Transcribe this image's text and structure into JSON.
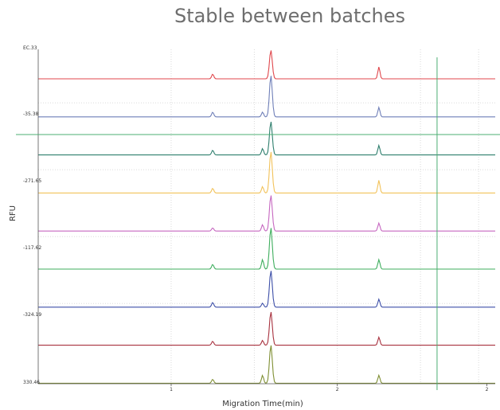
{
  "chart_data": {
    "type": "line",
    "title": "Stable between batches",
    "xlabel": "Migration Time(min)",
    "ylabel": "RFU",
    "x_ticks": [
      "1",
      "2",
      "2"
    ],
    "y_tick_labels": [
      "EC.33",
      "-35.38",
      "-271.65",
      "-117.62",
      "-324.19",
      "330.46"
    ],
    "grid": true,
    "cursor_lines": true,
    "series": [
      {
        "color": "#e0474c",
        "peaks": [
          [
            1.25,
            6
          ],
          [
            1.6,
            36
          ],
          [
            2.25,
            15
          ]
        ]
      },
      {
        "color": "#6f7fb8",
        "peaks": [
          [
            1.25,
            6
          ],
          [
            1.55,
            6
          ],
          [
            1.6,
            52
          ],
          [
            2.25,
            12
          ]
        ]
      },
      {
        "color": "#2f7f6e",
        "peaks": [
          [
            1.25,
            6
          ],
          [
            1.55,
            8
          ],
          [
            1.6,
            42
          ],
          [
            2.25,
            12
          ]
        ]
      },
      {
        "color": "#f2c25a",
        "peaks": [
          [
            1.25,
            6
          ],
          [
            1.55,
            8
          ],
          [
            1.6,
            52
          ],
          [
            2.25,
            16
          ]
        ]
      },
      {
        "color": "#c667c0",
        "peaks": [
          [
            1.25,
            4
          ],
          [
            1.55,
            8
          ],
          [
            1.6,
            45
          ],
          [
            2.25,
            10
          ]
        ]
      },
      {
        "color": "#3fae5e",
        "peaks": [
          [
            1.25,
            6
          ],
          [
            1.55,
            12
          ],
          [
            1.6,
            52
          ],
          [
            2.25,
            12
          ]
        ]
      },
      {
        "color": "#3d4fa8",
        "peaks": [
          [
            1.25,
            6
          ],
          [
            1.55,
            5
          ],
          [
            1.6,
            46
          ],
          [
            2.25,
            10
          ]
        ]
      },
      {
        "color": "#a8323f",
        "peaks": [
          [
            1.25,
            5
          ],
          [
            1.55,
            6
          ],
          [
            1.6,
            42
          ],
          [
            2.25,
            10
          ]
        ]
      },
      {
        "color": "#7f8f33",
        "peaks": [
          [
            1.25,
            5
          ],
          [
            1.55,
            10
          ],
          [
            1.6,
            48
          ],
          [
            2.25,
            10
          ]
        ]
      }
    ]
  }
}
